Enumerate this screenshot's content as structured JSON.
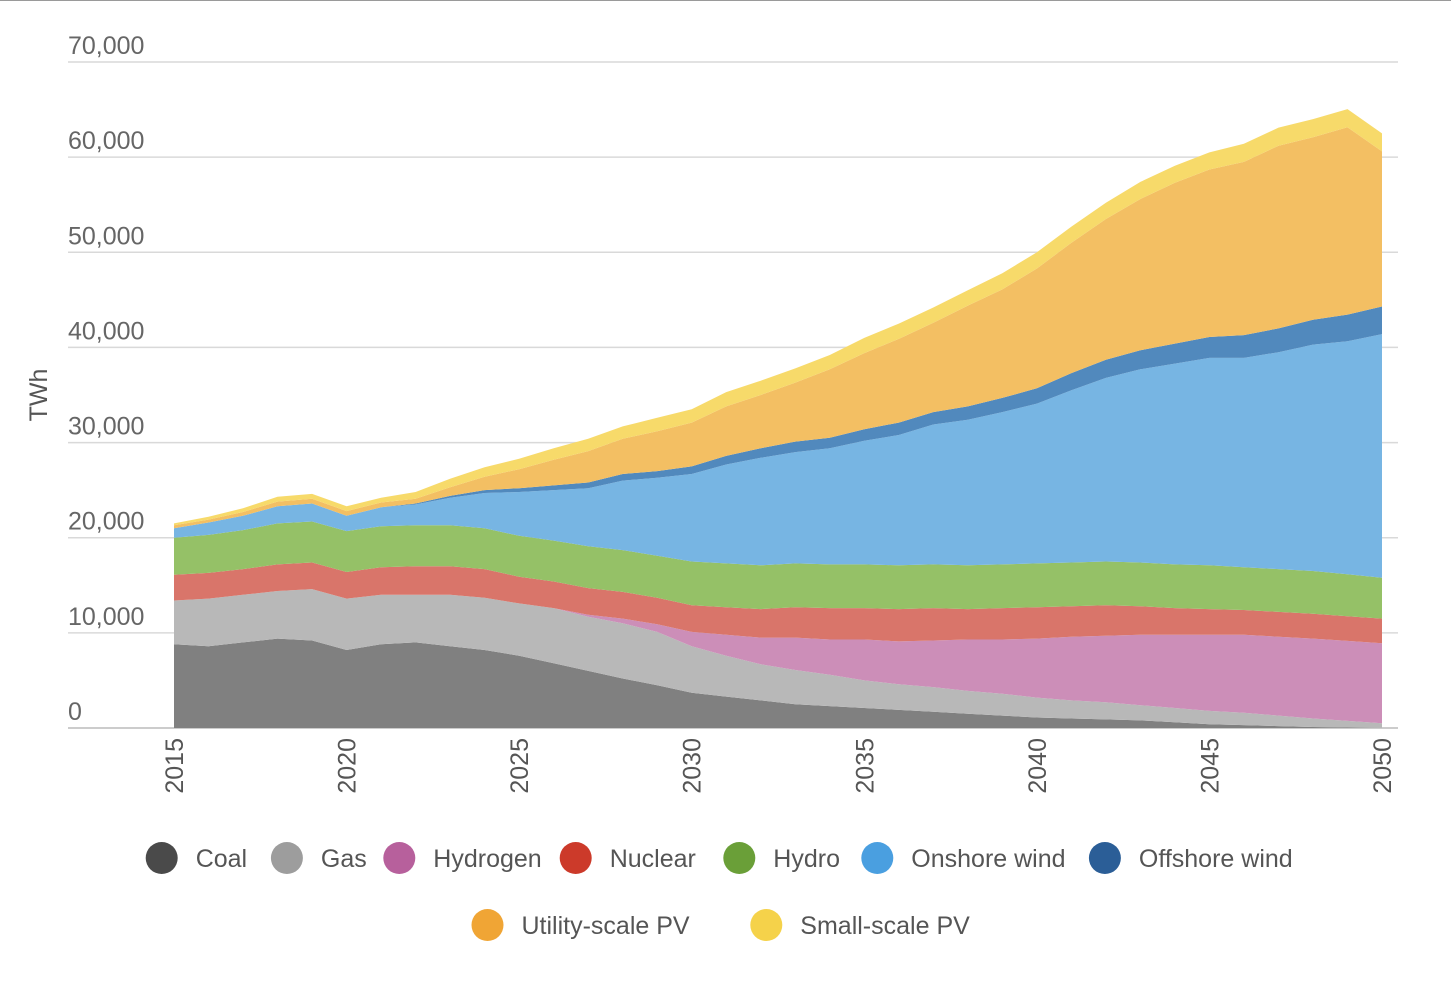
{
  "chart_data": {
    "type": "area",
    "stacked": true,
    "ylabel": "TWh",
    "xlabel": "",
    "ylim": [
      0,
      70000
    ],
    "yticks": [
      0,
      10000,
      20000,
      30000,
      40000,
      50000,
      60000,
      70000
    ],
    "ytick_labels": [
      "0",
      "10,000",
      "20,000",
      "30,000",
      "40,000",
      "50,000",
      "60,000",
      "70,000"
    ],
    "xlim": [
      2015,
      2050
    ],
    "xticks": [
      2015,
      2020,
      2025,
      2030,
      2035,
      2040,
      2045,
      2050
    ],
    "xtick_labels": [
      "2015",
      "2020",
      "2025",
      "2030",
      "2035",
      "2040",
      "2045",
      "2050"
    ],
    "grid": true,
    "legend_position": "bottom",
    "x": [
      2015,
      2016,
      2017,
      2018,
      2019,
      2020,
      2021,
      2022,
      2023,
      2024,
      2025,
      2026,
      2027,
      2028,
      2029,
      2030,
      2031,
      2032,
      2033,
      2034,
      2035,
      2036,
      2037,
      2038,
      2039,
      2040,
      2041,
      2042,
      2043,
      2044,
      2045,
      2046,
      2047,
      2048,
      2049,
      2050
    ],
    "series": [
      {
        "name": "Coal",
        "color": "#808080",
        "values": [
          8800,
          8600,
          9000,
          9400,
          9200,
          8200,
          8800,
          9000,
          8600,
          8200,
          7600,
          6800,
          6000,
          5200,
          4500,
          3700,
          3300,
          2900,
          2500,
          2300,
          2100,
          1900,
          1700,
          1500,
          1300,
          1100,
          1000,
          900,
          800,
          600,
          400,
          300,
          200,
          100,
          50,
          0
        ]
      },
      {
        "name": "Gas",
        "color": "#b8b8b8",
        "values": [
          4600,
          5000,
          5000,
          5000,
          5400,
          5400,
          5200,
          5000,
          5400,
          5500,
          5500,
          5800,
          5700,
          5800,
          5600,
          4900,
          4300,
          3800,
          3600,
          3300,
          2900,
          2700,
          2600,
          2400,
          2300,
          2100,
          1900,
          1800,
          1600,
          1500,
          1400,
          1300,
          1100,
          900,
          700,
          500
        ]
      },
      {
        "name": "Hydrogen",
        "color": "#cc8eb8",
        "values": [
          0,
          0,
          0,
          0,
          0,
          0,
          0,
          0,
          0,
          0,
          0,
          0,
          200,
          500,
          800,
          1500,
          2200,
          2800,
          3400,
          3700,
          4300,
          4500,
          4900,
          5400,
          5700,
          6200,
          6700,
          7000,
          7400,
          7700,
          8000,
          8200,
          8300,
          8400,
          8400,
          8400
        ]
      },
      {
        "name": "Nuclear",
        "color": "#d9756a",
        "values": [
          2700,
          2700,
          2700,
          2800,
          2800,
          2800,
          2900,
          3000,
          3000,
          3000,
          2800,
          2800,
          2800,
          2800,
          2800,
          2800,
          2900,
          3000,
          3200,
          3300,
          3300,
          3400,
          3400,
          3200,
          3300,
          3300,
          3200,
          3200,
          3000,
          2800,
          2700,
          2600,
          2600,
          2600,
          2600,
          2600
        ]
      },
      {
        "name": "Hydro",
        "color": "#95c167",
        "values": [
          3900,
          4000,
          4100,
          4300,
          4300,
          4300,
          4300,
          4300,
          4300,
          4300,
          4300,
          4300,
          4400,
          4400,
          4400,
          4600,
          4600,
          4600,
          4600,
          4600,
          4600,
          4600,
          4600,
          4600,
          4600,
          4600,
          4600,
          4600,
          4600,
          4600,
          4600,
          4500,
          4500,
          4500,
          4400,
          4300
        ]
      },
      {
        "name": "Onshore wind",
        "color": "#77b5e3",
        "values": [
          1000,
          1300,
          1500,
          1800,
          1900,
          1600,
          2000,
          2200,
          2900,
          3700,
          4600,
          5300,
          6100,
          7300,
          8200,
          9200,
          10400,
          11300,
          11700,
          12200,
          13000,
          13700,
          14700,
          15300,
          16000,
          16800,
          18100,
          19300,
          20300,
          21100,
          21800,
          22000,
          22800,
          23800,
          24500,
          25600
        ]
      },
      {
        "name": "Offshore wind",
        "color": "#5189bd",
        "values": [
          0,
          0,
          0,
          0,
          0,
          0,
          0,
          100,
          200,
          300,
          400,
          500,
          600,
          700,
          700,
          800,
          900,
          1000,
          1100,
          1100,
          1200,
          1300,
          1300,
          1400,
          1500,
          1600,
          1800,
          1900,
          2000,
          2100,
          2200,
          2400,
          2500,
          2600,
          2800,
          2900
        ]
      },
      {
        "name": "Utility-scale PV",
        "color": "#f3bf63",
        "values": [
          300,
          300,
          400,
          500,
          500,
          500,
          500,
          500,
          900,
          1400,
          2000,
          2700,
          3300,
          3700,
          4200,
          4600,
          5200,
          5600,
          6200,
          7200,
          8000,
          8800,
          9400,
          10600,
          11400,
          12600,
          13700,
          14800,
          15900,
          16900,
          17600,
          18200,
          19200,
          19200,
          19700,
          16300
        ]
      },
      {
        "name": "Small-scale PV",
        "color": "#f7da6a",
        "values": [
          200,
          300,
          400,
          500,
          500,
          500,
          500,
          700,
          900,
          1000,
          1100,
          1200,
          1300,
          1300,
          1400,
          1400,
          1500,
          1500,
          1500,
          1500,
          1600,
          1600,
          1600,
          1600,
          1700,
          1700,
          1700,
          1700,
          1800,
          1800,
          1800,
          1900,
          1900,
          1900,
          1900,
          1900
        ]
      }
    ]
  }
}
